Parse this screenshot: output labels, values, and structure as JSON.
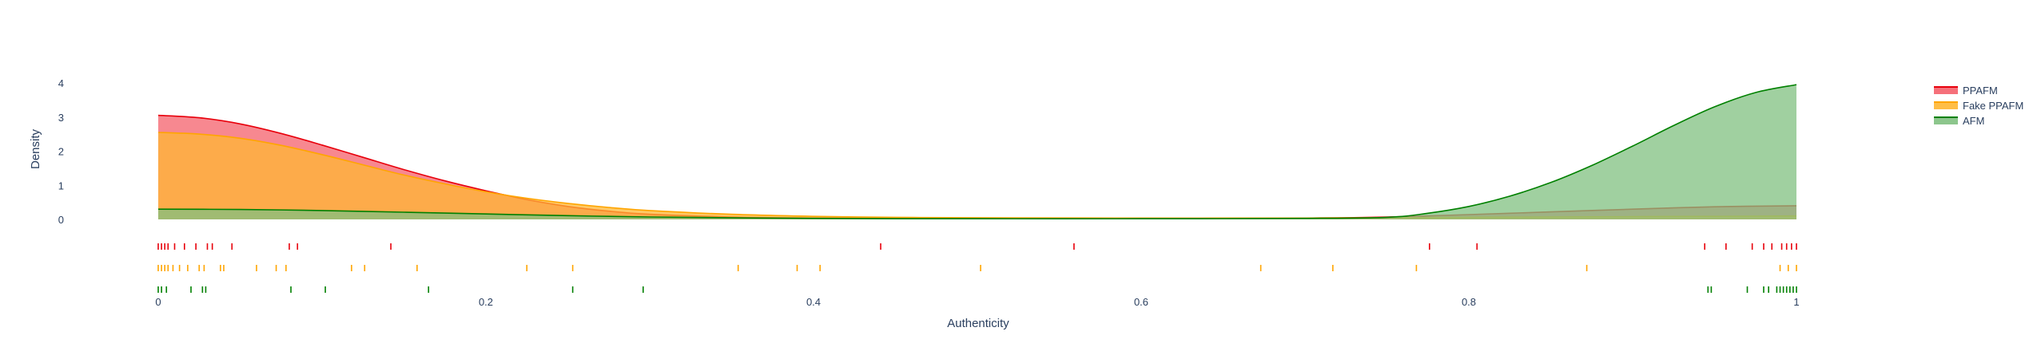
{
  "chart_data": {
    "type": "area",
    "title": "",
    "xlabel": "Authenticity",
    "ylabel": "Density",
    "xlim": [
      0,
      1
    ],
    "ylim": [
      0,
      4
    ],
    "x_ticks": [
      0,
      0.2,
      0.4,
      0.6,
      0.8,
      1
    ],
    "x_tick_labels": [
      "0",
      "0.2",
      "0.4",
      "0.6",
      "0.8",
      "1"
    ],
    "y_ticks": [
      0,
      1,
      2,
      3,
      4
    ],
    "y_tick_labels": [
      "0",
      "1",
      "2",
      "3",
      "4"
    ],
    "grid": false,
    "legend": {
      "position": "top-right"
    },
    "series": [
      {
        "name": "PPAFM",
        "line_color": "#e8000b",
        "fill_color": "#f4606b",
        "x": [
          0,
          0.025,
          0.05,
          0.075,
          0.1,
          0.125,
          0.15,
          0.175,
          0.2,
          0.225,
          0.25,
          0.275,
          0.3,
          0.35,
          0.4,
          0.45,
          0.5,
          0.6,
          0.7,
          0.75,
          0.8,
          0.85,
          0.9,
          0.95,
          1
        ],
        "density": [
          3.05,
          2.98,
          2.8,
          2.52,
          2.18,
          1.82,
          1.46,
          1.13,
          0.84,
          0.58,
          0.38,
          0.24,
          0.15,
          0.07,
          0.04,
          0.03,
          0.03,
          0.03,
          0.04,
          0.07,
          0.14,
          0.22,
          0.3,
          0.37,
          0.4
        ],
        "rug": [
          0,
          0.002,
          0.004,
          0.006,
          0.01,
          0.016,
          0.023,
          0.03,
          0.033,
          0.045,
          0.08,
          0.085,
          0.142,
          0.441,
          0.559,
          0.776,
          0.805,
          0.944,
          0.957,
          0.973,
          0.98,
          0.985,
          0.991,
          0.994,
          0.997,
          1
        ]
      },
      {
        "name": "Fake PPAFM",
        "line_color": "#ffa500",
        "fill_color": "#ffb733",
        "x": [
          0,
          0.025,
          0.05,
          0.075,
          0.1,
          0.125,
          0.15,
          0.175,
          0.2,
          0.225,
          0.25,
          0.275,
          0.3,
          0.35,
          0.4,
          0.45,
          0.5,
          0.6,
          0.7,
          0.75,
          0.8,
          0.85,
          0.9,
          0.95,
          1
        ],
        "density": [
          2.55,
          2.5,
          2.38,
          2.17,
          1.9,
          1.6,
          1.3,
          1.04,
          0.81,
          0.62,
          0.47,
          0.35,
          0.26,
          0.15,
          0.09,
          0.06,
          0.05,
          0.04,
          0.04,
          0.05,
          0.06,
          0.07,
          0.08,
          0.09,
          0.1
        ],
        "rug": [
          0,
          0.002,
          0.004,
          0.006,
          0.009,
          0.013,
          0.018,
          0.025,
          0.028,
          0.038,
          0.04,
          0.06,
          0.072,
          0.078,
          0.118,
          0.126,
          0.158,
          0.225,
          0.253,
          0.354,
          0.39,
          0.404,
          0.502,
          0.673,
          0.717,
          0.768,
          0.872,
          0.99,
          0.995,
          1
        ]
      },
      {
        "name": "AFM",
        "line_color": "#008000",
        "fill_color": "#80c080",
        "x": [
          0,
          0.05,
          0.1,
          0.15,
          0.2,
          0.25,
          0.3,
          0.4,
          0.5,
          0.6,
          0.7,
          0.75,
          0.775,
          0.8,
          0.825,
          0.85,
          0.875,
          0.9,
          0.925,
          0.95,
          0.975,
          1
        ],
        "density": [
          0.3,
          0.29,
          0.26,
          0.21,
          0.16,
          0.11,
          0.07,
          0.03,
          0.02,
          0.02,
          0.03,
          0.06,
          0.18,
          0.38,
          0.68,
          1.08,
          1.58,
          2.15,
          2.75,
          3.3,
          3.72,
          3.95
        ],
        "rug": [
          0,
          0.002,
          0.005,
          0.02,
          0.027,
          0.029,
          0.081,
          0.102,
          0.165,
          0.253,
          0.296,
          0.946,
          0.948,
          0.97,
          0.98,
          0.983,
          0.988,
          0.99,
          0.992,
          0.994,
          0.996,
          0.998,
          1
        ]
      }
    ]
  }
}
